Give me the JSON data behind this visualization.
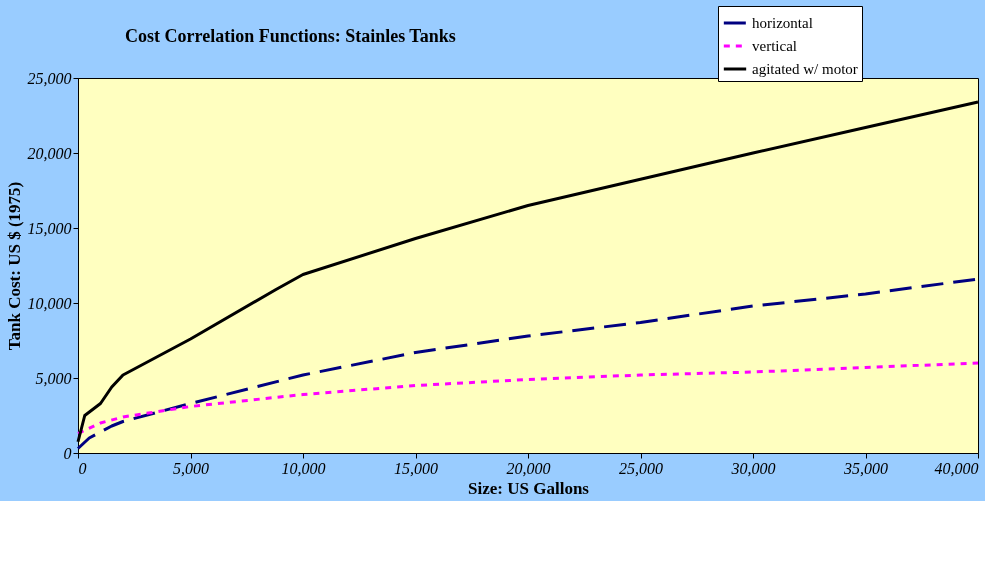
{
  "chart_data": {
    "type": "line",
    "title": "Cost Correlation Functions: Stainles Tanks",
    "xlabel": "Size: US Gallons",
    "ylabel": "Tank Cost: US $ (1975)",
    "xlim": [
      0,
      40000
    ],
    "xticks": [
      {
        "value": 0,
        "label": "0"
      },
      {
        "value": 5000,
        "label": "5,000"
      },
      {
        "value": 10000,
        "label": "10,000"
      },
      {
        "value": 15000,
        "label": "15,000"
      },
      {
        "value": 20000,
        "label": "20,000"
      },
      {
        "value": 25000,
        "label": "25,000"
      },
      {
        "value": 30000,
        "label": "30,000"
      },
      {
        "value": 35000,
        "label": "35,000"
      },
      {
        "value": 40000,
        "label": "40,000"
      }
    ],
    "ylim": [
      0,
      25000
    ],
    "yticks": [
      {
        "value": 0,
        "label": "0"
      },
      {
        "value": 5000,
        "label": "5,000"
      },
      {
        "value": 10000,
        "label": "10,000"
      },
      {
        "value": 15000,
        "label": "15,000"
      },
      {
        "value": 20000,
        "label": "20,000"
      },
      {
        "value": 25000,
        "label": "25,000"
      }
    ],
    "grid": false,
    "legend": "top right",
    "marker": "none",
    "series": [
      {
        "name": "horizontal",
        "color": "#000080",
        "line_style": "dashed",
        "x": [
          0,
          500,
          1500,
          2000,
          5000,
          10000,
          15000,
          20000,
          25000,
          30000,
          35000,
          40000
        ],
        "values": [
          300,
          1000,
          1800,
          2100,
          3300,
          5200,
          6700,
          7800,
          8700,
          9800,
          10600,
          11600
        ]
      },
      {
        "name": "vertical",
        "color": "#ff00ff",
        "line_style": "dotted",
        "x": [
          0,
          1000,
          2000,
          5000,
          10000,
          15000,
          20000,
          25000,
          30000,
          35000,
          40000
        ],
        "values": [
          1300,
          2000,
          2400,
          3100,
          3900,
          4500,
          4900,
          5200,
          5400,
          5700,
          6000
        ]
      },
      {
        "name": "agitated w/ motor",
        "color": "#000000",
        "line_style": "solid",
        "x": [
          0,
          300,
          1000,
          1500,
          2000,
          5000,
          8800,
          10000,
          15000,
          20000,
          25000,
          30000,
          35000,
          40000
        ],
        "values": [
          750,
          2500,
          3300,
          4400,
          5200,
          7600,
          10900,
          11900,
          14300,
          16500,
          18250,
          20000,
          21700,
          23400
        ]
      }
    ]
  }
}
